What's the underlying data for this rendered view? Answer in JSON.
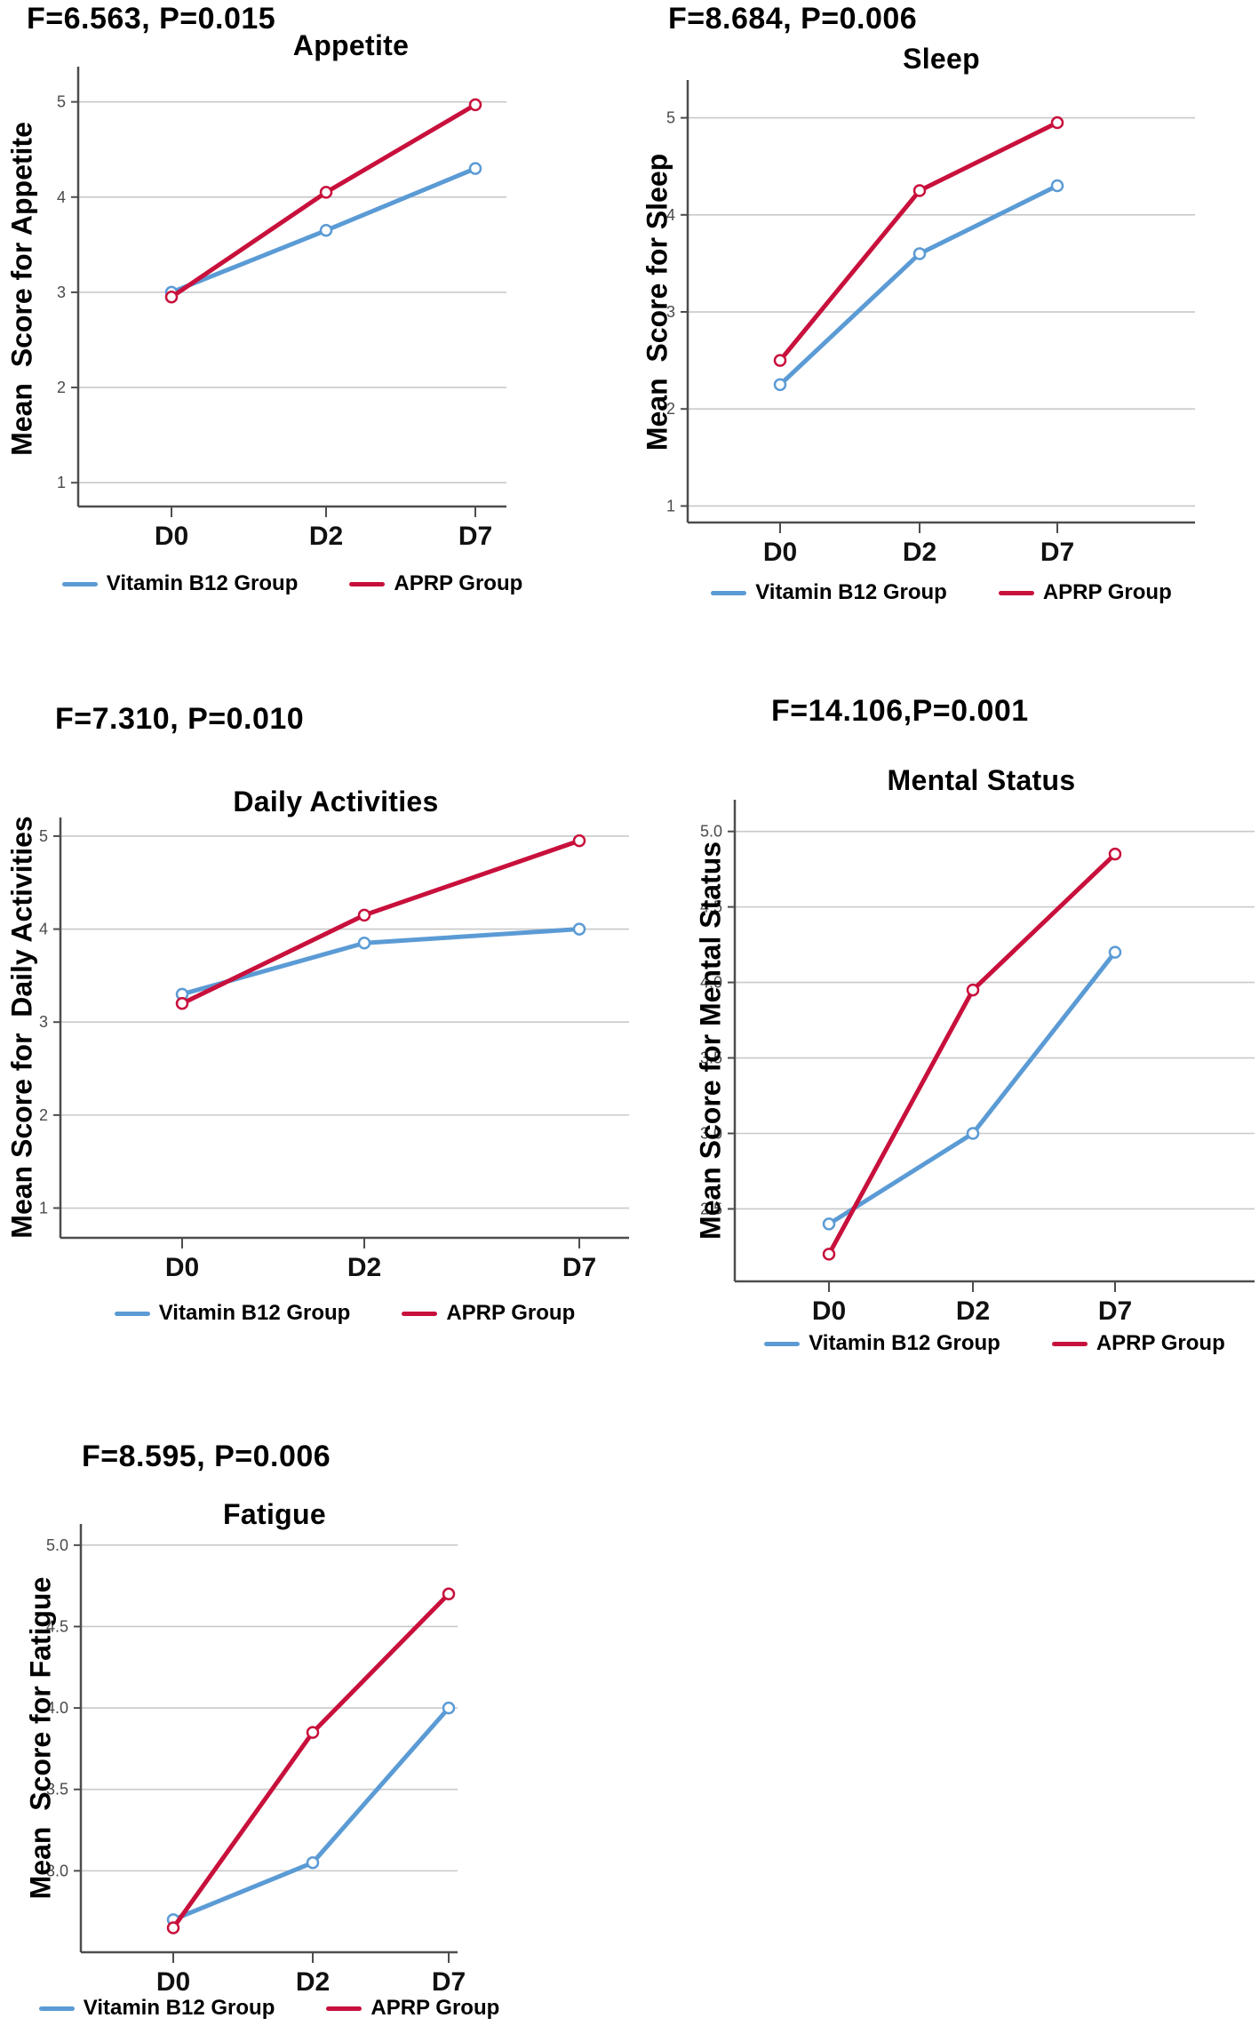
{
  "colors": {
    "vitamin_b12_blue": "#5B9BD5",
    "aprp_red": "#C8103C",
    "gridline": "#c9c9c9",
    "axis": "#4d4d4d",
    "tick_text": "#4a4a4a"
  },
  "legend": {
    "items": [
      {
        "label": "Vitamin B12 Group",
        "color": "#5B9BD5"
      },
      {
        "label": "APRP Group",
        "color": "#C8103C"
      }
    ]
  },
  "chart_data": [
    {
      "id": "appetite",
      "type": "line",
      "annotation": "F=6.563, P=0.015",
      "title": "Appetite",
      "ylabel": "Mean  Score for Appetite",
      "categories": [
        "D0",
        "D2",
        "D7"
      ],
      "series": [
        {
          "name": "Vitamin B12 Group",
          "color": "#5B9BD5",
          "values": [
            3.0,
            3.65,
            4.3
          ]
        },
        {
          "name": "APRP Group",
          "color": "#C8103C",
          "values": [
            2.95,
            4.05,
            4.97
          ]
        }
      ],
      "ytick_values": [
        1,
        2,
        3,
        4,
        5
      ],
      "ytick_labels": [
        "1",
        "2",
        "3",
        "4",
        "5"
      ],
      "ylim": [
        0.75,
        5.37
      ],
      "grid": true,
      "legend_position": "bottom"
    },
    {
      "id": "sleep",
      "type": "line",
      "annotation": "F=8.684, P=0.006",
      "title": "Sleep",
      "ylabel": "Mean  Score for Sleep",
      "categories": [
        "D0",
        "D2",
        "D7"
      ],
      "series": [
        {
          "name": "Vitamin B12 Group",
          "color": "#5B9BD5",
          "values": [
            2.25,
            3.6,
            4.3
          ]
        },
        {
          "name": "APRP Group",
          "color": "#C8103C",
          "values": [
            2.5,
            4.25,
            4.95
          ]
        }
      ],
      "ytick_values": [
        1,
        2,
        3,
        4,
        5
      ],
      "ytick_labels": [
        "1",
        "2",
        "3",
        "4",
        "5"
      ],
      "ylim": [
        0.83,
        5.39
      ],
      "grid": true,
      "legend_position": "bottom"
    },
    {
      "id": "daily-activities",
      "type": "line",
      "annotation": "F=7.310, P=0.010",
      "title": "Daily Activities",
      "ylabel": "Mean Score for  Daily Activities",
      "categories": [
        "D0",
        "D2",
        "D7"
      ],
      "series": [
        {
          "name": "Vitamin B12 Group",
          "color": "#5B9BD5",
          "values": [
            3.3,
            3.85,
            4.0
          ]
        },
        {
          "name": "APRP Group",
          "color": "#C8103C",
          "values": [
            3.2,
            4.15,
            4.95
          ]
        }
      ],
      "ytick_values": [
        1,
        2,
        3,
        4,
        5
      ],
      "ytick_labels": [
        "1",
        "2",
        "3",
        "4",
        "5"
      ],
      "ylim": [
        0.68,
        5.2
      ],
      "grid": true,
      "legend_position": "bottom"
    },
    {
      "id": "mental-status",
      "type": "line",
      "annotation": "F=14.106,P=0.001",
      "title": "Mental Status",
      "ylabel": "Mean Score for Mental Status",
      "categories": [
        "D0",
        "D2",
        "D7"
      ],
      "series": [
        {
          "name": "Vitamin B12 Group",
          "color": "#5B9BD5",
          "values": [
            2.4,
            3.0,
            4.2
          ]
        },
        {
          "name": "APRP Group",
          "color": "#C8103C",
          "values": [
            2.2,
            3.95,
            4.85
          ]
        }
      ],
      "ytick_values": [
        2.5,
        3.0,
        3.5,
        4.0,
        4.5,
        5.0
      ],
      "ytick_labels": [
        "2.5",
        "3.0",
        "3.5",
        "4.0",
        "4.5",
        "5.0"
      ],
      "ylim": [
        2.02,
        5.21
      ],
      "grid": true,
      "legend_position": "bottom"
    },
    {
      "id": "fatigue",
      "type": "line",
      "annotation": "F=8.595, P=0.006",
      "title": "Fatigue",
      "ylabel": "Mean  Score for Fatigue",
      "categories": [
        "D0",
        "D2",
        "D7"
      ],
      "series": [
        {
          "name": "Vitamin B12 Group",
          "color": "#5B9BD5",
          "values": [
            2.7,
            3.05,
            4.0
          ]
        },
        {
          "name": "APRP Group",
          "color": "#C8103C",
          "values": [
            2.65,
            3.85,
            4.7
          ]
        }
      ],
      "ytick_values": [
        3.0,
        3.5,
        4.0,
        4.5,
        5.0
      ],
      "ytick_labels": [
        "3.0",
        "3.5",
        "4.0",
        "4.5",
        "5.0"
      ],
      "ylim": [
        2.5,
        5.13
      ],
      "grid": true,
      "legend_position": "bottom"
    }
  ]
}
